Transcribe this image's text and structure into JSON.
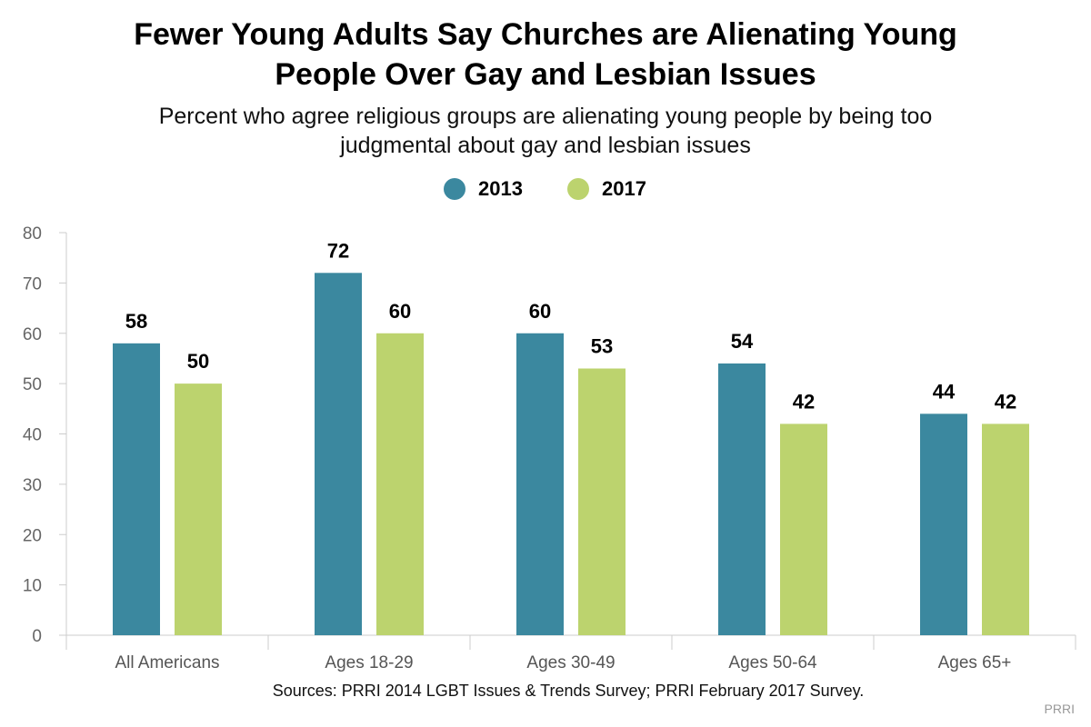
{
  "title": {
    "line1": "Fewer Young Adults Say Churches are Alienating Young",
    "line2": "People Over Gay and Lesbian Issues"
  },
  "subtitle": {
    "line1": "Percent who agree religious groups are alienating young people by being too",
    "line2": "judgmental about gay and lesbian issues"
  },
  "legend": [
    {
      "label": "2013",
      "color": "#3b889f"
    },
    {
      "label": "2017",
      "color": "#bcd36e"
    }
  ],
  "chart_data": {
    "type": "bar",
    "categories": [
      "All Americans",
      "Ages 18-29",
      "Ages 30-49",
      "Ages 50-64",
      "Ages 65+"
    ],
    "series": [
      {
        "name": "2013",
        "values": [
          58,
          72,
          60,
          54,
          44
        ],
        "color": "#3b889f"
      },
      {
        "name": "2017",
        "values": [
          50,
          60,
          53,
          42,
          42
        ],
        "color": "#bcd36e"
      }
    ],
    "ylim": [
      0,
      80
    ],
    "yticks": [
      0,
      10,
      20,
      30,
      40,
      50,
      60,
      70,
      80
    ],
    "grid": false,
    "legend_position": "top"
  },
  "source": "Sources: PRRI 2014 LGBT Issues & Trends Survey; PRRI February 2017 Survey.",
  "credit": "PRRI"
}
